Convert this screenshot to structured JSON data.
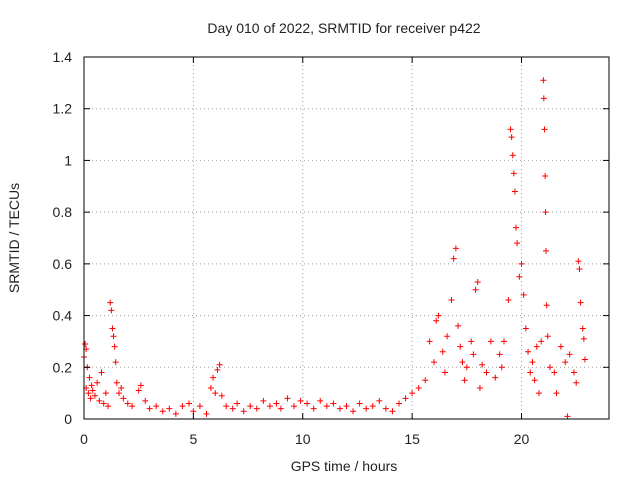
{
  "chart_data": {
    "type": "scatter",
    "title": "Day 010 of 2022, SRMTID for receiver p422",
    "xlabel": "GPS time / hours",
    "ylabel": "SRMTID / TECUs",
    "xlim": [
      0,
      24
    ],
    "ylim": [
      0,
      1.4
    ],
    "xticks": [
      "0",
      "5",
      "10",
      "15",
      "20"
    ],
    "yticks": [
      "0",
      "0.2",
      "0.4",
      "0.6",
      "0.8",
      "1",
      "1.2",
      "1.4"
    ],
    "xtick_values": [
      0,
      5,
      10,
      15,
      20
    ],
    "ytick_values": [
      0,
      0.2,
      0.4,
      0.6,
      0.8,
      1.0,
      1.2,
      1.4
    ],
    "grid": true,
    "marker": "plus",
    "color": "#ff0000",
    "series": [
      {
        "name": "SRMTID",
        "points": [
          [
            0.0,
            0.24
          ],
          [
            0.05,
            0.29
          ],
          [
            0.1,
            0.27
          ],
          [
            0.1,
            0.12
          ],
          [
            0.15,
            0.2
          ],
          [
            0.2,
            0.1
          ],
          [
            0.25,
            0.16
          ],
          [
            0.3,
            0.08
          ],
          [
            0.35,
            0.13
          ],
          [
            0.4,
            0.11
          ],
          [
            0.5,
            0.09
          ],
          [
            0.6,
            0.14
          ],
          [
            0.7,
            0.07
          ],
          [
            0.8,
            0.18
          ],
          [
            0.9,
            0.06
          ],
          [
            1.0,
            0.1
          ],
          [
            1.1,
            0.05
          ],
          [
            1.2,
            0.45
          ],
          [
            1.25,
            0.42
          ],
          [
            1.3,
            0.35
          ],
          [
            1.35,
            0.32
          ],
          [
            1.4,
            0.28
          ],
          [
            1.45,
            0.22
          ],
          [
            1.5,
            0.14
          ],
          [
            1.6,
            0.1
          ],
          [
            1.7,
            0.12
          ],
          [
            1.8,
            0.08
          ],
          [
            2.0,
            0.06
          ],
          [
            2.2,
            0.05
          ],
          [
            2.5,
            0.11
          ],
          [
            2.6,
            0.13
          ],
          [
            2.8,
            0.07
          ],
          [
            3.0,
            0.04
          ],
          [
            3.3,
            0.05
          ],
          [
            3.6,
            0.03
          ],
          [
            3.9,
            0.04
          ],
          [
            4.2,
            0.02
          ],
          [
            4.5,
            0.05
          ],
          [
            4.8,
            0.06
          ],
          [
            5.0,
            0.03
          ],
          [
            5.3,
            0.05
          ],
          [
            5.6,
            0.02
          ],
          [
            5.8,
            0.12
          ],
          [
            5.9,
            0.16
          ],
          [
            6.0,
            0.1
          ],
          [
            6.1,
            0.19
          ],
          [
            6.2,
            0.21
          ],
          [
            6.3,
            0.09
          ],
          [
            6.5,
            0.05
          ],
          [
            6.8,
            0.04
          ],
          [
            7.0,
            0.06
          ],
          [
            7.3,
            0.03
          ],
          [
            7.6,
            0.05
          ],
          [
            7.9,
            0.04
          ],
          [
            8.2,
            0.07
          ],
          [
            8.5,
            0.05
          ],
          [
            8.8,
            0.06
          ],
          [
            9.0,
            0.04
          ],
          [
            9.3,
            0.08
          ],
          [
            9.6,
            0.05
          ],
          [
            9.9,
            0.07
          ],
          [
            10.2,
            0.06
          ],
          [
            10.5,
            0.04
          ],
          [
            10.8,
            0.07
          ],
          [
            11.1,
            0.05
          ],
          [
            11.4,
            0.06
          ],
          [
            11.7,
            0.04
          ],
          [
            12.0,
            0.05
          ],
          [
            12.3,
            0.03
          ],
          [
            12.6,
            0.06
          ],
          [
            12.9,
            0.04
          ],
          [
            13.2,
            0.05
          ],
          [
            13.5,
            0.07
          ],
          [
            13.8,
            0.04
          ],
          [
            14.1,
            0.03
          ],
          [
            14.4,
            0.06
          ],
          [
            14.7,
            0.08
          ],
          [
            15.0,
            0.1
          ],
          [
            15.3,
            0.12
          ],
          [
            15.6,
            0.15
          ],
          [
            15.8,
            0.3
          ],
          [
            16.0,
            0.22
          ],
          [
            16.1,
            0.38
          ],
          [
            16.2,
            0.4
          ],
          [
            16.4,
            0.26
          ],
          [
            16.5,
            0.18
          ],
          [
            16.6,
            0.32
          ],
          [
            16.8,
            0.46
          ],
          [
            16.9,
            0.62
          ],
          [
            17.0,
            0.66
          ],
          [
            17.1,
            0.36
          ],
          [
            17.2,
            0.28
          ],
          [
            17.3,
            0.22
          ],
          [
            17.4,
            0.15
          ],
          [
            17.5,
            0.2
          ],
          [
            17.7,
            0.3
          ],
          [
            17.8,
            0.25
          ],
          [
            17.9,
            0.5
          ],
          [
            18.0,
            0.53
          ],
          [
            18.1,
            0.12
          ],
          [
            18.2,
            0.21
          ],
          [
            18.4,
            0.18
          ],
          [
            18.6,
            0.3
          ],
          [
            18.8,
            0.16
          ],
          [
            19.0,
            0.25
          ],
          [
            19.1,
            0.2
          ],
          [
            19.2,
            0.3
          ],
          [
            19.4,
            0.46
          ],
          [
            19.5,
            1.12
          ],
          [
            19.55,
            1.09
          ],
          [
            19.6,
            1.02
          ],
          [
            19.65,
            0.95
          ],
          [
            19.7,
            0.88
          ],
          [
            19.75,
            0.74
          ],
          [
            19.8,
            0.68
          ],
          [
            19.9,
            0.55
          ],
          [
            20.0,
            0.6
          ],
          [
            20.1,
            0.48
          ],
          [
            20.2,
            0.35
          ],
          [
            20.3,
            0.26
          ],
          [
            20.4,
            0.18
          ],
          [
            20.5,
            0.22
          ],
          [
            20.6,
            0.15
          ],
          [
            20.7,
            0.28
          ],
          [
            20.8,
            0.1
          ],
          [
            20.9,
            0.3
          ],
          [
            21.0,
            1.31
          ],
          [
            21.02,
            1.24
          ],
          [
            21.05,
            1.12
          ],
          [
            21.08,
            0.94
          ],
          [
            21.1,
            0.8
          ],
          [
            21.12,
            0.65
          ],
          [
            21.15,
            0.44
          ],
          [
            21.2,
            0.32
          ],
          [
            21.3,
            0.2
          ],
          [
            21.5,
            0.18
          ],
          [
            21.6,
            0.1
          ],
          [
            21.8,
            0.28
          ],
          [
            22.0,
            0.22
          ],
          [
            22.1,
            0.01
          ],
          [
            22.2,
            0.25
          ],
          [
            22.4,
            0.18
          ],
          [
            22.5,
            0.14
          ],
          [
            22.6,
            0.61
          ],
          [
            22.65,
            0.58
          ],
          [
            22.7,
            0.45
          ],
          [
            22.8,
            0.35
          ],
          [
            22.85,
            0.31
          ],
          [
            22.9,
            0.23
          ]
        ]
      }
    ]
  }
}
